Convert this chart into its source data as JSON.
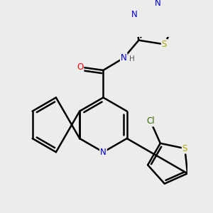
{
  "background_color": "#ececec",
  "atom_colors": {
    "C": "#000000",
    "N": "#0000cc",
    "O": "#ff0000",
    "S": "#aaaa00",
    "Cl": "#336600",
    "H": "#555555"
  },
  "bond_color": "#000000",
  "bond_width": 1.8
}
